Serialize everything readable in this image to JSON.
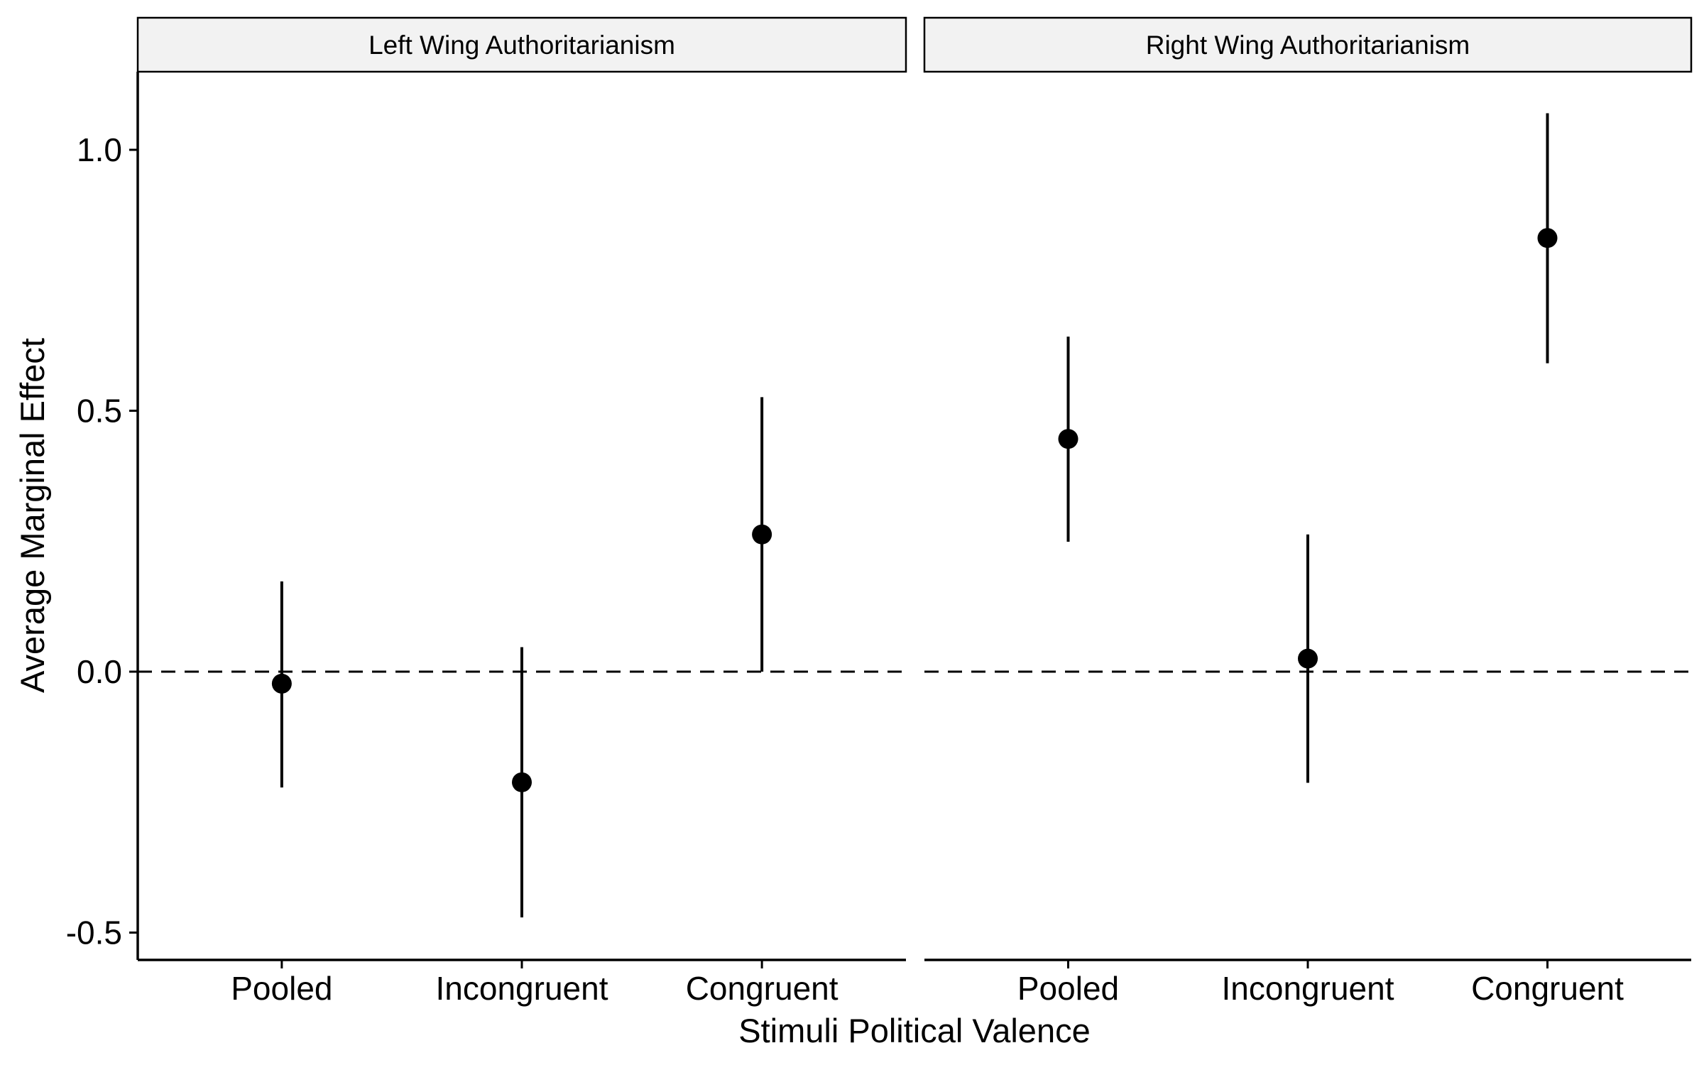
{
  "chart_data": {
    "type": "scatter",
    "subtype": "point-range (faceted)",
    "xlabel": "Stimuli Political Valence",
    "ylabel": "Average Marginal Effect",
    "categories": [
      "Pooled",
      "Incongruent",
      "Congruent"
    ],
    "ylim": [
      -0.55,
      1.16
    ],
    "yticks": [
      -0.5,
      0.0,
      0.5,
      1.0
    ],
    "ytick_labels": [
      "-0.5",
      "0.0",
      "0.5",
      "1.0"
    ],
    "reference_line": {
      "y": 0.0,
      "style": "dashed"
    },
    "grid": false,
    "legend": "none",
    "panels": [
      {
        "title": "Left Wing Authoritarianism",
        "points": [
          {
            "category": "Pooled",
            "estimate": -0.023,
            "lower": -0.222,
            "upper": 0.173
          },
          {
            "category": "Incongruent",
            "estimate": -0.212,
            "lower": -0.471,
            "upper": 0.047
          },
          {
            "category": "Congruent",
            "estimate": 0.263,
            "lower": 0.0,
            "upper": 0.526
          }
        ]
      },
      {
        "title": "Right Wing Authoritarianism",
        "points": [
          {
            "category": "Pooled",
            "estimate": 0.446,
            "lower": 0.249,
            "upper": 0.642
          },
          {
            "category": "Incongruent",
            "estimate": 0.025,
            "lower": -0.213,
            "upper": 0.263
          },
          {
            "category": "Congruent",
            "estimate": 0.831,
            "lower": 0.591,
            "upper": 1.07
          }
        ]
      }
    ],
    "colors": {
      "points": "#000000",
      "strip_fill": "#f2f2f2",
      "background": "#ffffff"
    }
  }
}
